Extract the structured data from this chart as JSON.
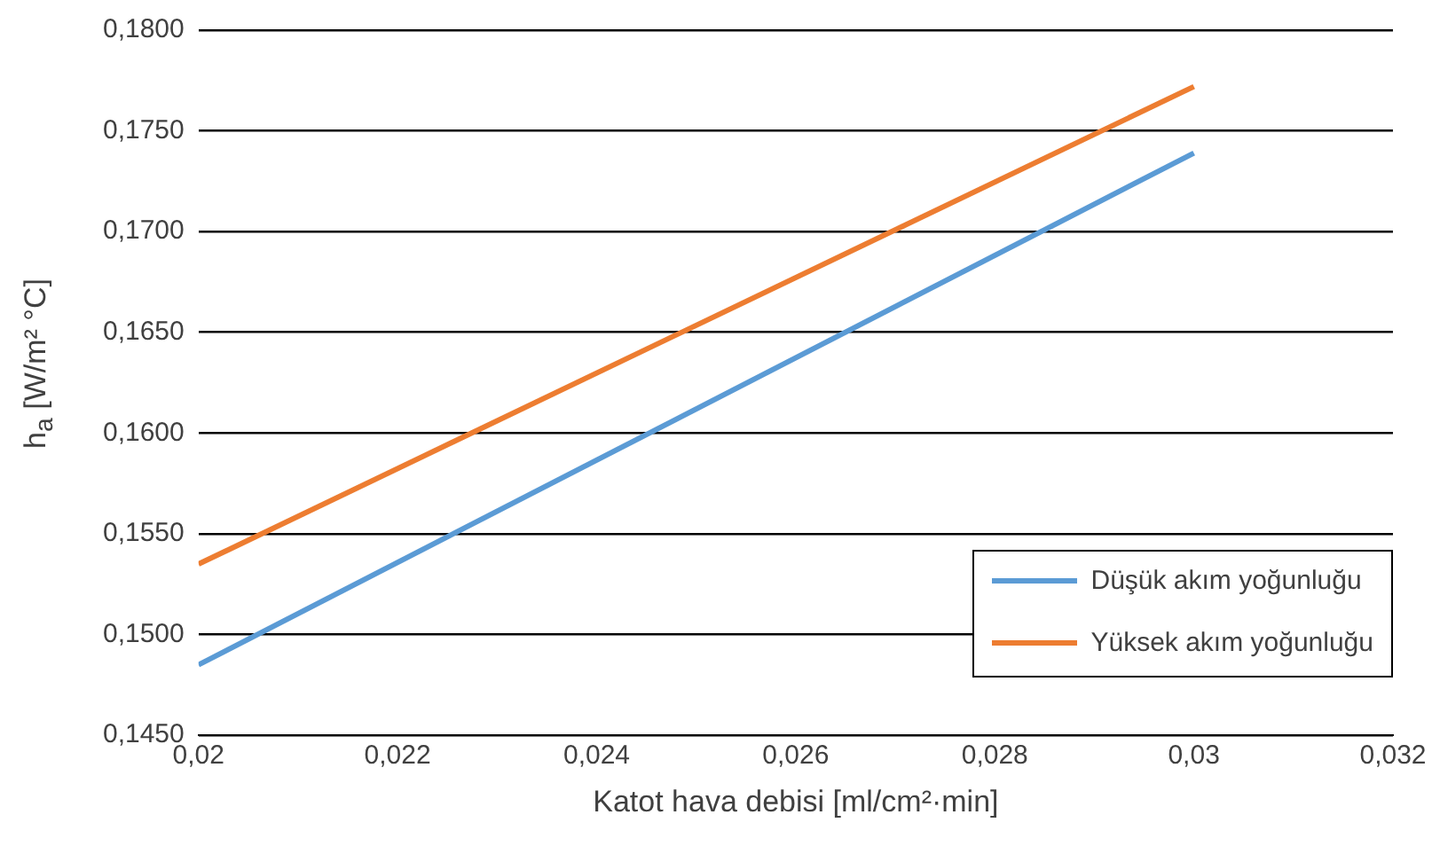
{
  "chart_data": {
    "type": "line",
    "xlabel": "Katot hava debisi [ml/cm²·min]",
    "ylabel": "h$_{a}$ [W/m² °C]",
    "x": [
      0.02,
      0.03
    ],
    "series": [
      {
        "name": "Düşük akım yoğunluğu",
        "color": "#5b9bd5",
        "values": [
          0.1485,
          0.1739
        ]
      },
      {
        "name": "Yüksek akım yoğunluğu",
        "color": "#ed7d31",
        "values": [
          0.1535,
          0.1772
        ]
      }
    ],
    "xlim": [
      0.02,
      0.032
    ],
    "xticks": [
      {
        "value": 0.02,
        "label": "0,02"
      },
      {
        "value": 0.022,
        "label": "0,022"
      },
      {
        "value": 0.024,
        "label": "0,024"
      },
      {
        "value": 0.026,
        "label": "0,026"
      },
      {
        "value": 0.028,
        "label": "0,028"
      },
      {
        "value": 0.03,
        "label": "0,03"
      },
      {
        "value": 0.032,
        "label": "0,032"
      }
    ],
    "ylim": [
      0.145,
      0.18
    ],
    "yticks": [
      {
        "value": 0.145,
        "label": "0,1450"
      },
      {
        "value": 0.15,
        "label": "0,1500"
      },
      {
        "value": 0.155,
        "label": "0,1550"
      },
      {
        "value": 0.16,
        "label": "0,1600"
      },
      {
        "value": 0.165,
        "label": "0,1650"
      },
      {
        "value": 0.17,
        "label": "0,1700"
      },
      {
        "value": 0.175,
        "label": "0,1750"
      },
      {
        "value": 0.18,
        "label": "0,1800"
      }
    ],
    "grid": "y",
    "legend": "bottom right",
    "marker": "none",
    "line_style": "solid"
  }
}
